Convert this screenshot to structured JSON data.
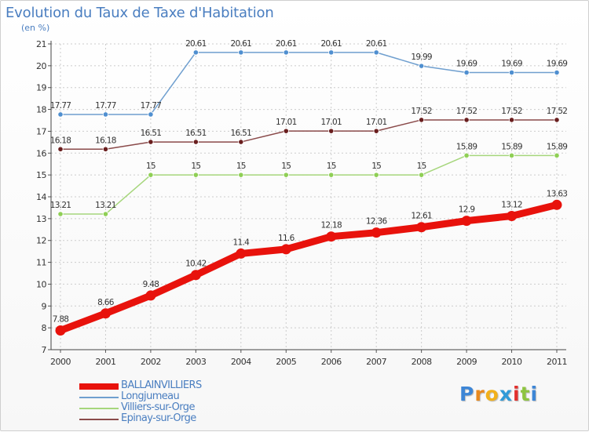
{
  "title": "Evolution du Taux de Taxe d'Habitation",
  "unit_label": "(en %)",
  "brand": {
    "text": "Proxiti",
    "letters": [
      {
        "char": "P",
        "color": "#3d86d6"
      },
      {
        "char": "r",
        "color": "#e8891e"
      },
      {
        "char": "o",
        "color": "#f2b11b"
      },
      {
        "char": "x",
        "color": "#2f9ad8"
      },
      {
        "char": "i",
        "color": "#e2302d"
      },
      {
        "char": "t",
        "color": "#8ec540"
      },
      {
        "char": "i",
        "color": "#3d86d6"
      }
    ]
  },
  "chart_data": {
    "type": "line",
    "title": "Evolution du Taux de Taxe d'Habitation",
    "ylabel": "(en %)",
    "xlabel": "",
    "x": [
      "2000",
      "2001",
      "2002",
      "2003",
      "2004",
      "2005",
      "2006",
      "2007",
      "2008",
      "2009",
      "2010",
      "2011"
    ],
    "ylim": [
      7,
      21
    ],
    "y_ticks": [
      7,
      8,
      9,
      10,
      11,
      12,
      13,
      14,
      15,
      16,
      17,
      18,
      19,
      20,
      21
    ],
    "grid": true,
    "legend_position": "bottom-left",
    "series": [
      {
        "name": "BALLAINVILLIERS",
        "color": "#e8120c",
        "dot_fill": "#e8120c",
        "emphasis": true,
        "values": [
          7.88,
          8.66,
          9.48,
          10.42,
          11.4,
          11.6,
          12.18,
          12.36,
          12.61,
          12.9,
          13.12,
          13.63
        ],
        "labels": [
          "7.88",
          "8.66",
          "9.48",
          "10.42",
          "11.4",
          "11.6",
          "12.18",
          "12.36",
          "12.61",
          "12.9",
          "13.12",
          "13.63"
        ]
      },
      {
        "name": "Longjumeau",
        "color": "#6f9fcf",
        "dot_fill": "#4f8fd0",
        "emphasis": false,
        "values": [
          17.77,
          17.77,
          17.77,
          20.61,
          20.61,
          20.61,
          20.61,
          20.61,
          19.99,
          19.69,
          19.69,
          19.69
        ],
        "labels": [
          "17.77",
          "17.77",
          "17.77",
          "20.61",
          "20.61",
          "20.61",
          "20.61",
          "20.61",
          "19.99",
          "19.69",
          "19.69",
          "19.69"
        ]
      },
      {
        "name": "Villiers-sur-Orge",
        "color": "#a6d67c",
        "dot_fill": "#8fcf55",
        "emphasis": false,
        "values": [
          13.21,
          13.21,
          15,
          15,
          15,
          15,
          15,
          15,
          15,
          15.89,
          15.89,
          15.89
        ],
        "labels": [
          "13.21",
          "13.21",
          "15",
          "15",
          "15",
          "15",
          "15",
          "15",
          "15",
          "15.89",
          "15.89",
          "15.89"
        ]
      },
      {
        "name": "Epinay-sur-Orge",
        "color": "#8a4a4a",
        "dot_fill": "#6a1f1f",
        "emphasis": false,
        "values": [
          16.18,
          16.18,
          16.51,
          16.51,
          16.51,
          17.01,
          17.01,
          17.01,
          17.52,
          17.52,
          17.52,
          17.52
        ],
        "labels": [
          "16.18",
          "16.18",
          "16.51",
          "16.51",
          "16.51",
          "17.01",
          "17.01",
          "17.01",
          "17.52",
          "17.52",
          "17.52",
          "17.52"
        ]
      }
    ]
  }
}
